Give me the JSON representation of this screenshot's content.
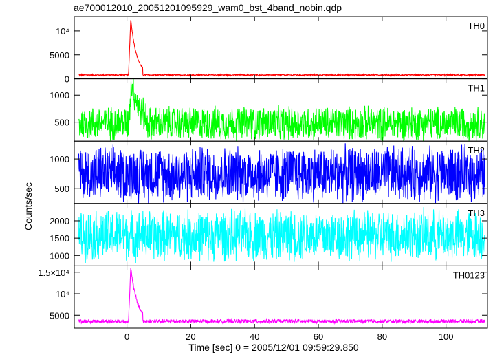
{
  "title": "ae700012010_20051201095929_wam0_bst_4band_nobin.qdp",
  "chart_data": {
    "type": "line",
    "title": "ae700012010_20051201095929_wam0_bst_4band_nobin.qdp",
    "xlabel": "Time [sec] 0 = 2005/12/01 09:59:29.850",
    "ylabel": "Counts/sec",
    "xlim": [
      -16.5,
      113
    ],
    "x_ticks": [
      0,
      20,
      40,
      60,
      80,
      100
    ],
    "x_tick_labels": [
      "0",
      "20",
      "40",
      "60",
      "80",
      "100"
    ],
    "grid": false,
    "panels": [
      {
        "name": "TH0",
        "color": "#ff0000",
        "ylim": [
          0,
          13000
        ],
        "y_ticks": [
          0,
          5000,
          10000
        ],
        "y_tick_labels": [
          "0",
          "5000",
          "10⁴"
        ],
        "baseline": 800,
        "noise": 180,
        "burst_start": 0.5,
        "peak_time": 1.2,
        "peak": 12500,
        "decay": 1.8,
        "burst_end": 5
      },
      {
        "name": "TH1",
        "color": "#00ff00",
        "ylim": [
          150,
          1300
        ],
        "y_ticks": [
          500,
          1000
        ],
        "y_tick_labels": [
          "500",
          "1000"
        ],
        "baseline": 480,
        "noise": 350,
        "burst_start": 0.5,
        "peak_time": 1.5,
        "peak": 1250,
        "decay": 2.5,
        "burst_end": 6
      },
      {
        "name": "TH2",
        "color": "#0000ff",
        "ylim": [
          250,
          1300
        ],
        "y_ticks": [
          500,
          1000
        ],
        "y_tick_labels": [
          "500",
          "1000"
        ],
        "baseline": 750,
        "noise": 520,
        "burst_start": 0,
        "peak_time": 0,
        "peak": 750,
        "decay": 1,
        "burst_end": 0
      },
      {
        "name": "TH3",
        "color": "#00ffff",
        "ylim": [
          700,
          2500
        ],
        "y_ticks": [
          1000,
          1500,
          2000
        ],
        "y_tick_labels": [
          "1000",
          "1500",
          "2000"
        ],
        "baseline": 1580,
        "noise": 820,
        "burst_start": 0,
        "peak_time": 0,
        "peak": 1580,
        "decay": 1,
        "burst_end": 0
      },
      {
        "name": "TH0123",
        "color": "#ff00ff",
        "ylim": [
          2000,
          16500
        ],
        "y_ticks": [
          5000,
          10000,
          15000
        ],
        "y_tick_labels": [
          "5000",
          "10⁴",
          "1.5×10⁴"
        ],
        "baseline": 3600,
        "noise": 520,
        "burst_start": 0.5,
        "peak_time": 1.2,
        "peak": 16000,
        "decay": 2.0,
        "burst_end": 5
      }
    ]
  }
}
